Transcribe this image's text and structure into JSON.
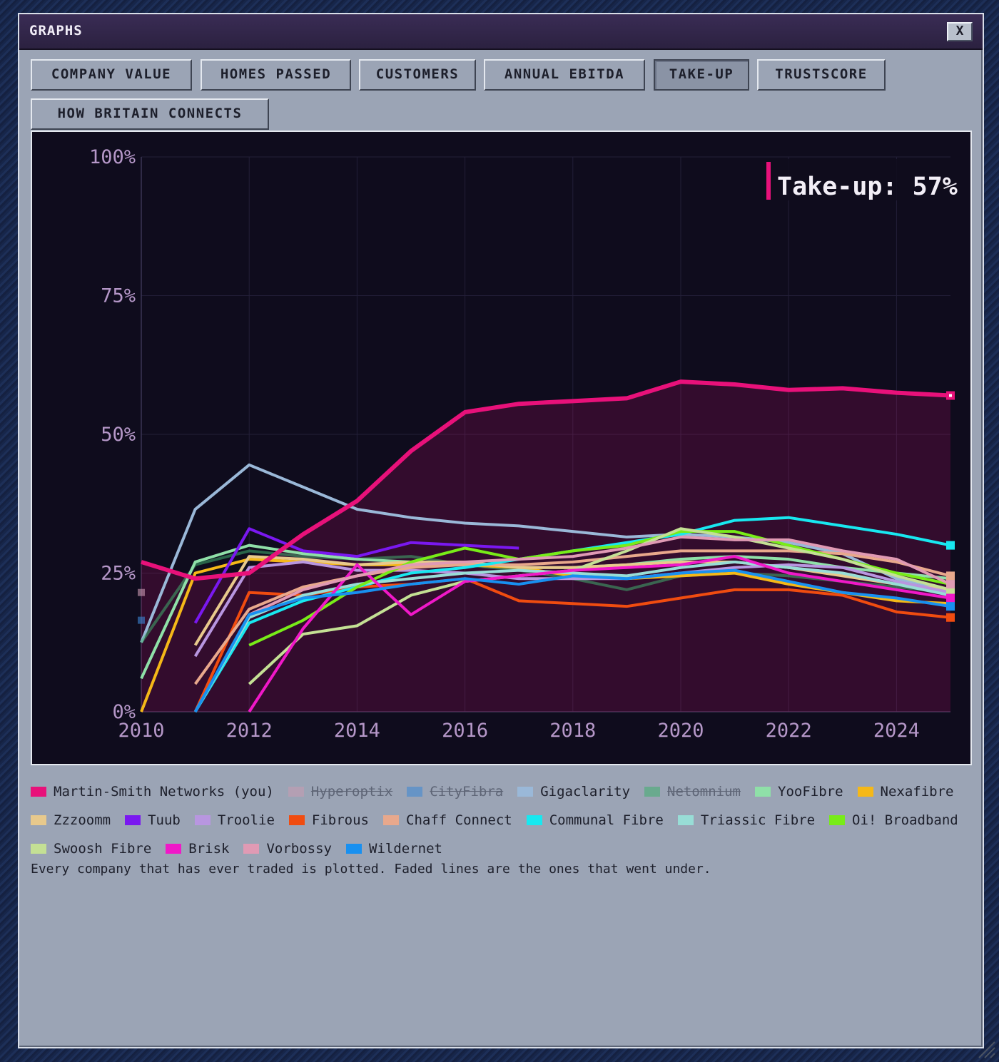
{
  "window": {
    "title": "GRAPHS",
    "close_label": "X"
  },
  "tabs": [
    {
      "label": "COMPANY VALUE",
      "active": false
    },
    {
      "label": "HOMES PASSED",
      "active": false
    },
    {
      "label": "CUSTOMERS",
      "active": false
    },
    {
      "label": "ANNUAL EBITDA",
      "active": false
    },
    {
      "label": "TAKE-UP",
      "active": true
    },
    {
      "label": "TRUSTSCORE",
      "active": false
    },
    {
      "label": "HOW BRITAIN CONNECTS",
      "active": false
    }
  ],
  "readout": {
    "text": "Take-up: 57%",
    "color": "#e8117a"
  },
  "footnote": "Every company that has ever traded is plotted. Faded lines are the ones that went under.",
  "chart_data": {
    "type": "line",
    "xlim": [
      2010,
      2025
    ],
    "ylim": [
      0,
      100
    ],
    "xticks": [
      "2010",
      "2012",
      "2014",
      "2016",
      "2018",
      "2020",
      "2022",
      "2024"
    ],
    "xtick_values": [
      2010,
      2012,
      2014,
      2016,
      2018,
      2020,
      2022,
      2024
    ],
    "yticks": [
      "0%",
      "25%",
      "50%",
      "75%",
      "100%"
    ],
    "ytick_values": [
      0,
      25,
      50,
      75,
      100
    ],
    "grid": true,
    "highlight_series": "Martin-Smith Networks (you)",
    "series": [
      {
        "name": "Martin-Smith Networks (you)",
        "color": "#e8117a",
        "faded": false,
        "x": [
          2010,
          2011,
          2012,
          2013,
          2014,
          2015,
          2016,
          2017,
          2018,
          2019,
          2020,
          2021,
          2022,
          2023,
          2024,
          2025
        ],
        "y": [
          27,
          24,
          25,
          32,
          38,
          47,
          54,
          55.5,
          56,
          56.5,
          59.5,
          59,
          58,
          58.3,
          57.5,
          57
        ]
      },
      {
        "name": "Hyperoptix",
        "color": "#c89ab0",
        "faded": true,
        "x": [
          2010
        ],
        "y": [
          21.5
        ]
      },
      {
        "name": "CityFibra",
        "color": "#3a86d4",
        "faded": true,
        "x": [
          2010
        ],
        "y": [
          16.5
        ]
      },
      {
        "name": "Gigaclarity",
        "color": "#9ab8d8",
        "faded": false,
        "x": [
          2010,
          2011,
          2012,
          2013,
          2014,
          2015,
          2016,
          2017,
          2018,
          2019,
          2020,
          2021,
          2022,
          2023,
          2024,
          2025
        ],
        "y": [
          12.5,
          36.5,
          44.5,
          40.5,
          36.5,
          35,
          34,
          33.5,
          32.5,
          31.5,
          32,
          31.5,
          30.5,
          28.5,
          24,
          22
        ]
      },
      {
        "name": "Netomnium",
        "color": "#3fae6e",
        "faded": true,
        "x": [
          2010,
          2011,
          2012,
          2013,
          2014,
          2015,
          2016,
          2017,
          2018,
          2019,
          2020,
          2021,
          2022,
          2023,
          2024,
          2025
        ],
        "y": [
          12.5,
          26.5,
          29,
          28,
          27.5,
          28,
          26.5,
          25.5,
          24,
          22,
          24.5,
          25,
          24.5,
          23.5,
          22.5,
          21.5
        ]
      },
      {
        "name": "YooFibre",
        "color": "#8fe0a8",
        "faded": false,
        "x": [
          2010,
          2011,
          2012,
          2013,
          2014,
          2015,
          2016,
          2017,
          2018,
          2019,
          2020,
          2021,
          2022,
          2023,
          2024,
          2025
        ],
        "y": [
          6,
          27,
          30,
          28.5,
          27.5,
          27,
          26.5,
          26,
          26,
          26.5,
          27.5,
          28,
          27.5,
          26,
          25,
          24
        ]
      },
      {
        "name": "Nexafibre",
        "color": "#f5b818",
        "faded": false,
        "x": [
          2010,
          2011,
          2012,
          2013,
          2014,
          2015,
          2016,
          2017,
          2018,
          2019,
          2020,
          2021,
          2022,
          2023,
          2024,
          2025
        ],
        "y": [
          0,
          25,
          27.5,
          27,
          26.5,
          26.5,
          26.5,
          26,
          24.5,
          24,
          24.5,
          25,
          23,
          21.5,
          20,
          19.5
        ]
      },
      {
        "name": "Zzzoomm",
        "color": "#e8c98c",
        "faded": false,
        "x": [
          2011,
          2012,
          2013,
          2014,
          2015,
          2016,
          2017,
          2018,
          2019,
          2020,
          2021,
          2022,
          2023,
          2024,
          2025
        ],
        "y": [
          12,
          28,
          27.5,
          26.5,
          27,
          27,
          26,
          26,
          26.5,
          27,
          27,
          26,
          24.5,
          23,
          22
        ]
      },
      {
        "name": "Tuub",
        "color": "#7a18f0",
        "faded": false,
        "x": [
          2011,
          2012,
          2013,
          2014,
          2015,
          2016,
          2017
        ],
        "y": [
          16,
          33,
          29,
          28,
          30.5,
          30,
          29.5
        ]
      },
      {
        "name": "Troolie",
        "color": "#b896e0",
        "faded": false,
        "x": [
          2011,
          2012,
          2013,
          2014,
          2015,
          2016,
          2017,
          2018,
          2019,
          2020,
          2021,
          2022,
          2023,
          2024,
          2025
        ],
        "y": [
          10,
          26,
          27,
          25.5,
          25.5,
          25,
          24,
          24,
          24,
          25,
          26,
          26.5,
          26,
          23.5,
          21.5
        ]
      },
      {
        "name": "Fibrous",
        "color": "#f04c10",
        "faded": false,
        "x": [
          2011,
          2012,
          2013,
          2014,
          2015,
          2016,
          2017,
          2018,
          2019,
          2020,
          2021,
          2022,
          2023,
          2024,
          2025
        ],
        "y": [
          0,
          21.5,
          21,
          22.5,
          23,
          24,
          20,
          19.5,
          19,
          20.5,
          22,
          22,
          21,
          18,
          17
        ]
      },
      {
        "name": "Chaff Connect",
        "color": "#e8a88c",
        "faded": false,
        "x": [
          2011,
          2012,
          2013,
          2014,
          2015,
          2016,
          2017,
          2018,
          2019,
          2020,
          2021,
          2022,
          2023,
          2024,
          2025
        ],
        "y": [
          5,
          18.5,
          22.5,
          24.5,
          26,
          26.5,
          26.5,
          27,
          28,
          29,
          29,
          29,
          28.5,
          27,
          24.5
        ]
      },
      {
        "name": "Communal Fibre",
        "color": "#18e8f0",
        "faded": false,
        "x": [
          2011,
          2012,
          2013,
          2014,
          2015,
          2016,
          2017,
          2018,
          2019,
          2020,
          2021,
          2022,
          2023,
          2024,
          2025
        ],
        "y": [
          0,
          16,
          20,
          22.5,
          25,
          26,
          27.5,
          29,
          30.5,
          32,
          34.5,
          35,
          33.5,
          32,
          30
        ]
      },
      {
        "name": "Triassic Fibre",
        "color": "#98ddd6",
        "faded": false,
        "x": [
          2011,
          2012,
          2013,
          2014,
          2015,
          2016,
          2017,
          2018,
          2019,
          2020,
          2021,
          2022,
          2023,
          2024,
          2025
        ],
        "y": [
          0,
          17,
          21,
          23,
          24,
          25,
          25.5,
          25,
          24.5,
          26,
          27,
          26,
          25,
          23,
          21
        ]
      },
      {
        "name": "Oi! Broadband",
        "color": "#78ec18",
        "faded": false,
        "x": [
          2012,
          2013,
          2014,
          2015,
          2016,
          2017,
          2018,
          2019,
          2020,
          2021,
          2022,
          2023,
          2024,
          2025
        ],
        "y": [
          12,
          16.5,
          22.5,
          27,
          29.5,
          27.5,
          29,
          30,
          32.5,
          32.5,
          30,
          27.5,
          25,
          23
        ]
      },
      {
        "name": "Swoosh Fibre",
        "color": "#c4e094",
        "faded": false,
        "x": [
          2012,
          2013,
          2014,
          2015,
          2016,
          2017,
          2018,
          2019,
          2020,
          2021,
          2022,
          2023,
          2024,
          2025
        ],
        "y": [
          5,
          14,
          15.5,
          21,
          23.5,
          24.5,
          25.5,
          29,
          33,
          31.5,
          29.5,
          27.5,
          24.5,
          22
        ]
      },
      {
        "name": "Brisk",
        "color": "#f018c8",
        "faded": false,
        "x": [
          2012,
          2013,
          2014,
          2015,
          2016,
          2017,
          2018,
          2019,
          2020,
          2021,
          2022,
          2023,
          2024,
          2025
        ],
        "y": [
          0,
          15,
          26.5,
          17.5,
          23.5,
          24.5,
          25.5,
          26,
          26.5,
          28,
          25,
          23.5,
          22,
          20.5
        ]
      },
      {
        "name": "Vorbossy",
        "color": "#e09ab4",
        "faded": false,
        "x": [
          2012,
          2013,
          2014,
          2015,
          2016,
          2017,
          2018,
          2019,
          2020,
          2021,
          2022,
          2023,
          2024,
          2025
        ],
        "y": [
          17.5,
          22,
          24.5,
          26.5,
          27,
          27.5,
          28,
          29.5,
          31.5,
          31,
          31,
          29,
          27.5,
          23
        ]
      },
      {
        "name": "Wildernet",
        "color": "#1890f0",
        "faded": false,
        "x": [
          2011,
          2012,
          2013,
          2014,
          2015,
          2016,
          2017,
          2018,
          2019,
          2020,
          2021,
          2022,
          2023,
          2024,
          2025
        ],
        "y": [
          0,
          17.5,
          20.5,
          21.5,
          23,
          24,
          23,
          24.5,
          24,
          25,
          25.5,
          23.5,
          21.5,
          20.5,
          19
        ]
      }
    ]
  }
}
